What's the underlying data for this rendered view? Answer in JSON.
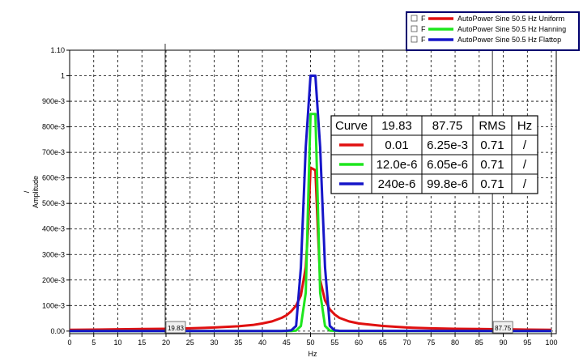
{
  "chart_data": {
    "type": "line",
    "xlabel": "Hz",
    "ylabel": "Amplitude",
    "ylabel_unit": "/",
    "xlim": [
      0,
      101
    ],
    "ylim": [
      -0.01,
      1.1
    ],
    "x_ticks": [
      0,
      5,
      10,
      15,
      20,
      25,
      30,
      35,
      40,
      45,
      50,
      55,
      60,
      65,
      70,
      75,
      80,
      85,
      90,
      95,
      100
    ],
    "x_tick_labels": [
      "0",
      "5",
      "10",
      "15",
      "20",
      "25",
      "30",
      "35",
      "40",
      "45",
      "50",
      "55",
      "60",
      "65",
      "70",
      "75",
      "80",
      "85",
      "90",
      "95",
      "100"
    ],
    "y_ticks": [
      0,
      0.1,
      0.2,
      0.3,
      0.4,
      0.5,
      0.6,
      0.7,
      0.8,
      0.9,
      1.0,
      1.1
    ],
    "y_tick_labels": [
      "0.00",
      "100e-3",
      "200e-3",
      "300e-3",
      "400e-3",
      "500e-3",
      "600e-3",
      "700e-3",
      "800e-3",
      "900e-3",
      "1",
      "1.10"
    ],
    "grid": true,
    "legend_position": "top-right",
    "series": [
      {
        "name": "AutoPower Sine 50.5 Hz  Uniform",
        "legend_prefix": "F",
        "color": "#e01010",
        "x": [
          0,
          5,
          10,
          15,
          20,
          25,
          30,
          35,
          38,
          40,
          42,
          44,
          45,
          46,
          47,
          48,
          49,
          49.5,
          50,
          51,
          51.5,
          52,
          53,
          54,
          55,
          56,
          58,
          60,
          65,
          70,
          75,
          80,
          85,
          90,
          95,
          100
        ],
        "y": [
          0.005,
          0.006,
          0.007,
          0.008,
          0.009,
          0.011,
          0.014,
          0.019,
          0.024,
          0.03,
          0.038,
          0.052,
          0.062,
          0.078,
          0.1,
          0.14,
          0.25,
          0.4,
          0.64,
          0.63,
          0.4,
          0.2,
          0.12,
          0.085,
          0.065,
          0.052,
          0.038,
          0.03,
          0.02,
          0.014,
          0.011,
          0.009,
          0.008,
          0.007,
          0.006,
          0.005
        ]
      },
      {
        "name": "AutoPower Sine 50.5 Hz  Hanning",
        "legend_prefix": "F",
        "color": "#1ee61e",
        "x": [
          0,
          44,
          46,
          47,
          48,
          49,
          49.5,
          50,
          51,
          51.5,
          52,
          53,
          54,
          56,
          100
        ],
        "y": [
          0,
          0,
          0,
          0.002,
          0.02,
          0.15,
          0.5,
          0.85,
          0.85,
          0.5,
          0.15,
          0.02,
          0.002,
          0,
          0
        ]
      },
      {
        "name": "AutoPower Sine 50.5 Hz  Flattop",
        "legend_prefix": "F",
        "color": "#1616c8",
        "x": [
          0,
          44,
          45,
          46,
          47,
          48,
          49,
          50,
          51,
          52,
          53,
          54,
          55,
          56,
          100
        ],
        "y": [
          0,
          0,
          0.001,
          0.003,
          0.02,
          0.25,
          0.72,
          1.0,
          1.0,
          0.72,
          0.25,
          0.02,
          0.003,
          0.001,
          0
        ]
      }
    ],
    "cursors": [
      {
        "x": 19.83,
        "label": "19.83"
      },
      {
        "x": 87.75,
        "label": "87.75"
      }
    ],
    "table": {
      "headers": [
        "Curve",
        "19.83",
        "87.75",
        "RMS",
        "Hz"
      ],
      "rows": [
        {
          "color": "#e01010",
          "cells": [
            "0.01",
            "6.25e-3",
            "0.71",
            "/"
          ]
        },
        {
          "color": "#1ee61e",
          "cells": [
            "12.0e-6",
            "6.05e-6",
            "0.71",
            "/"
          ]
        },
        {
          "color": "#1616c8",
          "cells": [
            "240e-6",
            "99.8e-6",
            "0.71",
            "/"
          ]
        }
      ]
    }
  }
}
